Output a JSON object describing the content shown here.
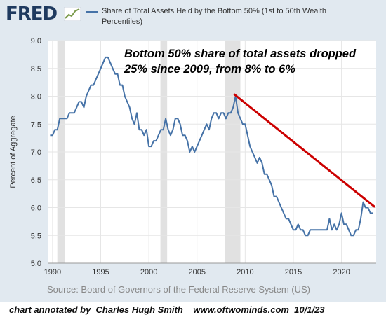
{
  "header": {
    "logo_text": "FRED",
    "logo_icon": "chart-line-icon",
    "legend_label": "Share of Total Assets Held by the Bottom 50% (1st to 50th Wealth Percentiles)"
  },
  "annotation": "Bottom 50% share of total assets dropped 25% since 2009, from 8% to 6%",
  "source": "Source: Board of Governors of the Federal Reserve System (US)",
  "credit": "chart annotated by  Charles Hugh Smith    www.oftwominds.com  10/1/23",
  "colors": {
    "series": "#4572a7",
    "trend": "#cc0000",
    "recession": "#e1e1e1",
    "background": "#e1e9f0"
  },
  "chart_data": {
    "type": "line",
    "ylabel": "Percent of Aggregate",
    "xlabel": "",
    "xlim": [
      1989.5,
      2023.6
    ],
    "ylim": [
      5.0,
      9.0
    ],
    "x_ticks": [
      1990,
      1995,
      2000,
      2005,
      2010,
      2015,
      2020
    ],
    "y_ticks": [
      "5.0",
      "5.5",
      "6.0",
      "6.5",
      "7.0",
      "7.5",
      "8.0",
      "8.5",
      "9.0"
    ],
    "grid": true,
    "recessions": [
      [
        1990.5,
        1991.25
      ],
      [
        2001.2,
        2001.9
      ],
      [
        2007.9,
        2009.5
      ]
    ],
    "series": [
      {
        "name": "Share of Total Assets Held by the Bottom 50% (1st to 50th Wealth Percentiles)",
        "x": [
          1989.75,
          1990.0,
          1990.25,
          1990.5,
          1990.75,
          1991.0,
          1991.25,
          1991.5,
          1991.75,
          1992.0,
          1992.25,
          1992.5,
          1992.75,
          1993.0,
          1993.25,
          1993.5,
          1993.75,
          1994.0,
          1994.25,
          1994.5,
          1994.75,
          1995.0,
          1995.25,
          1995.5,
          1995.75,
          1996.0,
          1996.25,
          1996.5,
          1996.75,
          1997.0,
          1997.25,
          1997.5,
          1997.75,
          1998.0,
          1998.25,
          1998.5,
          1998.75,
          1999.0,
          1999.25,
          1999.5,
          1999.75,
          2000.0,
          2000.25,
          2000.5,
          2000.75,
          2001.0,
          2001.25,
          2001.5,
          2001.75,
          2002.0,
          2002.25,
          2002.5,
          2002.75,
          2003.0,
          2003.25,
          2003.5,
          2003.75,
          2004.0,
          2004.25,
          2004.5,
          2004.75,
          2005.0,
          2005.25,
          2005.5,
          2005.75,
          2006.0,
          2006.25,
          2006.5,
          2006.75,
          2007.0,
          2007.25,
          2007.5,
          2007.75,
          2008.0,
          2008.25,
          2008.5,
          2008.75,
          2009.0,
          2009.25,
          2009.5,
          2009.75,
          2010.0,
          2010.25,
          2010.5,
          2010.75,
          2011.0,
          2011.25,
          2011.5,
          2011.75,
          2012.0,
          2012.25,
          2012.5,
          2012.75,
          2013.0,
          2013.25,
          2013.5,
          2013.75,
          2014.0,
          2014.25,
          2014.5,
          2014.75,
          2015.0,
          2015.25,
          2015.5,
          2015.75,
          2016.0,
          2016.25,
          2016.5,
          2016.75,
          2017.0,
          2017.25,
          2017.5,
          2017.75,
          2018.0,
          2018.25,
          2018.5,
          2018.75,
          2019.0,
          2019.25,
          2019.5,
          2019.75,
          2020.0,
          2020.25,
          2020.5,
          2020.75,
          2021.0,
          2021.25,
          2021.5,
          2021.75,
          2022.0,
          2022.25,
          2022.5,
          2022.75,
          2023.0,
          2023.25
        ],
        "values": [
          7.3,
          7.3,
          7.4,
          7.4,
          7.6,
          7.6,
          7.6,
          7.6,
          7.7,
          7.7,
          7.7,
          7.8,
          7.9,
          7.9,
          7.8,
          8.0,
          8.1,
          8.2,
          8.2,
          8.3,
          8.4,
          8.5,
          8.6,
          8.7,
          8.7,
          8.6,
          8.5,
          8.4,
          8.4,
          8.2,
          8.2,
          8.0,
          7.9,
          7.8,
          7.6,
          7.5,
          7.7,
          7.4,
          7.4,
          7.3,
          7.4,
          7.1,
          7.1,
          7.2,
          7.2,
          7.3,
          7.4,
          7.4,
          7.6,
          7.4,
          7.3,
          7.4,
          7.6,
          7.6,
          7.5,
          7.3,
          7.3,
          7.2,
          7.0,
          7.1,
          7.0,
          7.1,
          7.2,
          7.3,
          7.4,
          7.5,
          7.4,
          7.6,
          7.7,
          7.7,
          7.6,
          7.7,
          7.7,
          7.6,
          7.7,
          7.7,
          7.8,
          8.0,
          7.7,
          7.6,
          7.5,
          7.5,
          7.3,
          7.1,
          7.0,
          6.9,
          6.8,
          6.9,
          6.8,
          6.6,
          6.6,
          6.5,
          6.4,
          6.2,
          6.2,
          6.1,
          6.0,
          5.9,
          5.8,
          5.8,
          5.7,
          5.6,
          5.6,
          5.7,
          5.6,
          5.6,
          5.5,
          5.5,
          5.6,
          5.6,
          5.6,
          5.6,
          5.6,
          5.6,
          5.6,
          5.6,
          5.8,
          5.6,
          5.7,
          5.6,
          5.7,
          5.9,
          5.7,
          5.7,
          5.6,
          5.5,
          5.5,
          5.6,
          5.6,
          5.8,
          6.1,
          6.0,
          6.0,
          5.9,
          5.9
        ]
      }
    ],
    "trend_line": {
      "x": [
        2008.9,
        2023.4
      ],
      "values": [
        8.03,
        6.02
      ]
    }
  }
}
